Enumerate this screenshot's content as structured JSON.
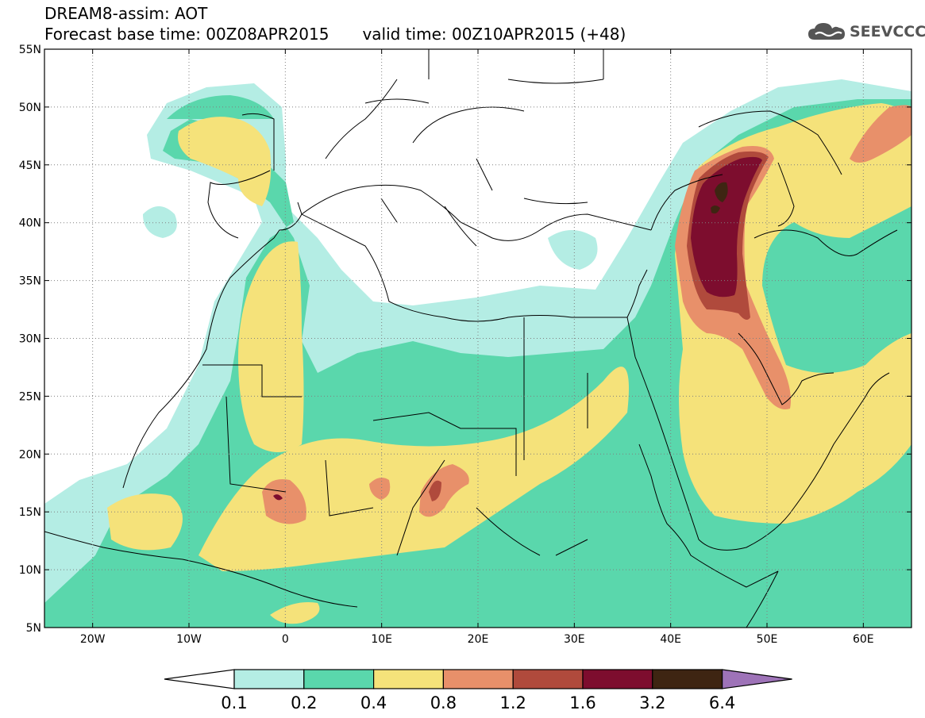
{
  "header": {
    "line1": "DREAM8-assim: AOT",
    "line2_base": "Forecast base time: 00Z08APR2015",
    "line2_valid": "valid time: 00Z10APR2015 (+48)"
  },
  "logo": {
    "text": "SEEVCCC",
    "icon": "cloud-icon"
  },
  "map": {
    "lon_range": [
      -25,
      65
    ],
    "lat_range": [
      5,
      55
    ],
    "lat_ticks": [
      {
        "value": 55,
        "label": "55N"
      },
      {
        "value": 50,
        "label": "50N"
      },
      {
        "value": 45,
        "label": "45N"
      },
      {
        "value": 40,
        "label": "40N"
      },
      {
        "value": 35,
        "label": "35N"
      },
      {
        "value": 30,
        "label": "30N"
      },
      {
        "value": 25,
        "label": "25N"
      },
      {
        "value": 20,
        "label": "20N"
      },
      {
        "value": 15,
        "label": "15N"
      },
      {
        "value": 10,
        "label": "10N"
      },
      {
        "value": 5,
        "label": "5N"
      }
    ],
    "lon_ticks": [
      {
        "value": -20,
        "label": "20W"
      },
      {
        "value": -10,
        "label": "10W"
      },
      {
        "value": 0,
        "label": "0"
      },
      {
        "value": 10,
        "label": "10E"
      },
      {
        "value": 20,
        "label": "20E"
      },
      {
        "value": 30,
        "label": "30E"
      },
      {
        "value": 40,
        "label": "40E"
      },
      {
        "value": 50,
        "label": "50E"
      },
      {
        "value": 60,
        "label": "60E"
      }
    ],
    "grid": "dotted"
  },
  "colorbar": {
    "levels": [
      "0.1",
      "0.2",
      "0.4",
      "0.8",
      "1.2",
      "1.6",
      "3.2",
      "6.4"
    ],
    "colors": [
      "#ffffff",
      "#b4ede4",
      "#5ad7ac",
      "#f5e27a",
      "#e8906a",
      "#b04a3c",
      "#7d0d2e",
      "#3e2512",
      "#9e73b8"
    ]
  }
}
